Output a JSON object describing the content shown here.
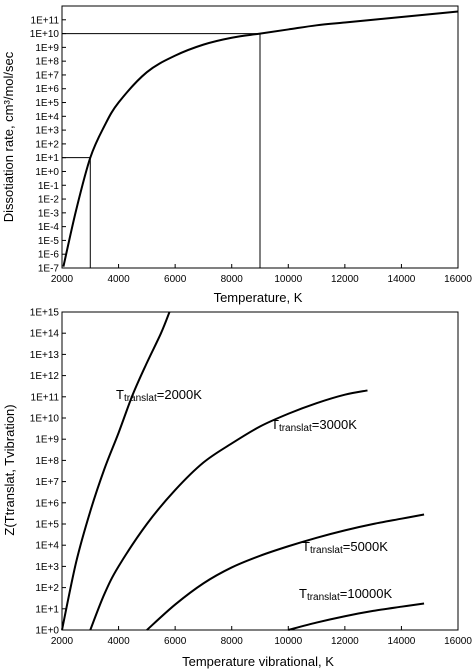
{
  "chart_data": [
    {
      "type": "line",
      "xlabel": "Temperature, K",
      "ylabel": "Dissotiation rate, cm³/mol/sec",
      "xlim": [
        2000,
        16000
      ],
      "ylim_exp": [
        -7,
        12
      ],
      "y_scale": "log",
      "x_ticks": [
        2000,
        4000,
        6000,
        8000,
        10000,
        12000,
        14000,
        16000
      ],
      "y_tick_labels": [
        "1E-7",
        "1E-6",
        "1E-5",
        "1E-4",
        "1E-3",
        "1E-2",
        "1E-1",
        "1E+0",
        "1E+1",
        "1E+2",
        "1E+3",
        "1E+4",
        "1E+5",
        "1E+6",
        "1E+7",
        "1E+8",
        "1E+9",
        "1E+10",
        "1E+11"
      ],
      "series": [
        {
          "x": [
            2050,
            2500,
            3000,
            3500,
            4000,
            5000,
            6000,
            7000,
            8000,
            9000,
            10000,
            11000,
            12000,
            13000,
            14000,
            15000,
            16000
          ],
          "log10_y": [
            -6.9,
            -2.8,
            1.0,
            3.3,
            5.0,
            7.2,
            8.4,
            9.2,
            9.7,
            10.0,
            10.3,
            10.6,
            10.8,
            11.0,
            11.2,
            11.4,
            11.6
          ]
        }
      ],
      "guides": [
        {
          "x": 3000,
          "log10_y": 1.0
        },
        {
          "x": 9000,
          "log10_y": 10.0
        }
      ]
    },
    {
      "type": "line",
      "xlabel": "Temperature vibrational, K",
      "ylabel": "Z(Ttranslat, Tvibration)",
      "xlim": [
        2000,
        16000
      ],
      "ylim_exp": [
        0,
        15
      ],
      "y_scale": "log",
      "x_ticks": [
        2000,
        4000,
        6000,
        8000,
        10000,
        12000,
        14000,
        16000
      ],
      "y_tick_labels": [
        "1E+0",
        "1E+1",
        "1E+2",
        "1E+3",
        "1E+4",
        "1E+5",
        "1E+6",
        "1E+7",
        "1E+8",
        "1E+9",
        "1E+10",
        "1E+11",
        "1E+12",
        "1E+13",
        "1E+14",
        "1E+15"
      ],
      "series": [
        {
          "label_main": "T",
          "label_sub": "translat",
          "label_tail": "=2000K",
          "x": [
            2000,
            2500,
            3000,
            3500,
            4000,
            4500,
            5000,
            5500,
            5800
          ],
          "log10_y": [
            0.0,
            3.2,
            5.6,
            7.6,
            9.3,
            11.1,
            12.6,
            14.0,
            15.0
          ]
        },
        {
          "label_main": "T",
          "label_sub": "translat",
          "label_tail": "=3000K",
          "x": [
            3000,
            3500,
            4000,
            5000,
            6000,
            7000,
            8000,
            9000,
            10000,
            11000,
            12000,
            12800
          ],
          "log10_y": [
            0.0,
            1.7,
            3.0,
            5.0,
            6.6,
            7.9,
            8.8,
            9.6,
            10.2,
            10.7,
            11.1,
            11.3
          ]
        },
        {
          "label_main": "T",
          "label_sub": "translat",
          "label_tail": "=5000K",
          "x": [
            5000,
            6000,
            7000,
            8000,
            9000,
            10000,
            11000,
            12000,
            13000,
            14000,
            14800
          ],
          "log10_y": [
            0.0,
            1.2,
            2.2,
            2.95,
            3.5,
            3.95,
            4.35,
            4.7,
            5.0,
            5.25,
            5.45
          ]
        },
        {
          "label_main": "T",
          "label_sub": "translat",
          "label_tail": "=10000K",
          "x": [
            10000,
            11000,
            12000,
            13000,
            14000,
            14800
          ],
          "log10_y": [
            0.0,
            0.35,
            0.65,
            0.9,
            1.1,
            1.25
          ]
        }
      ]
    }
  ]
}
